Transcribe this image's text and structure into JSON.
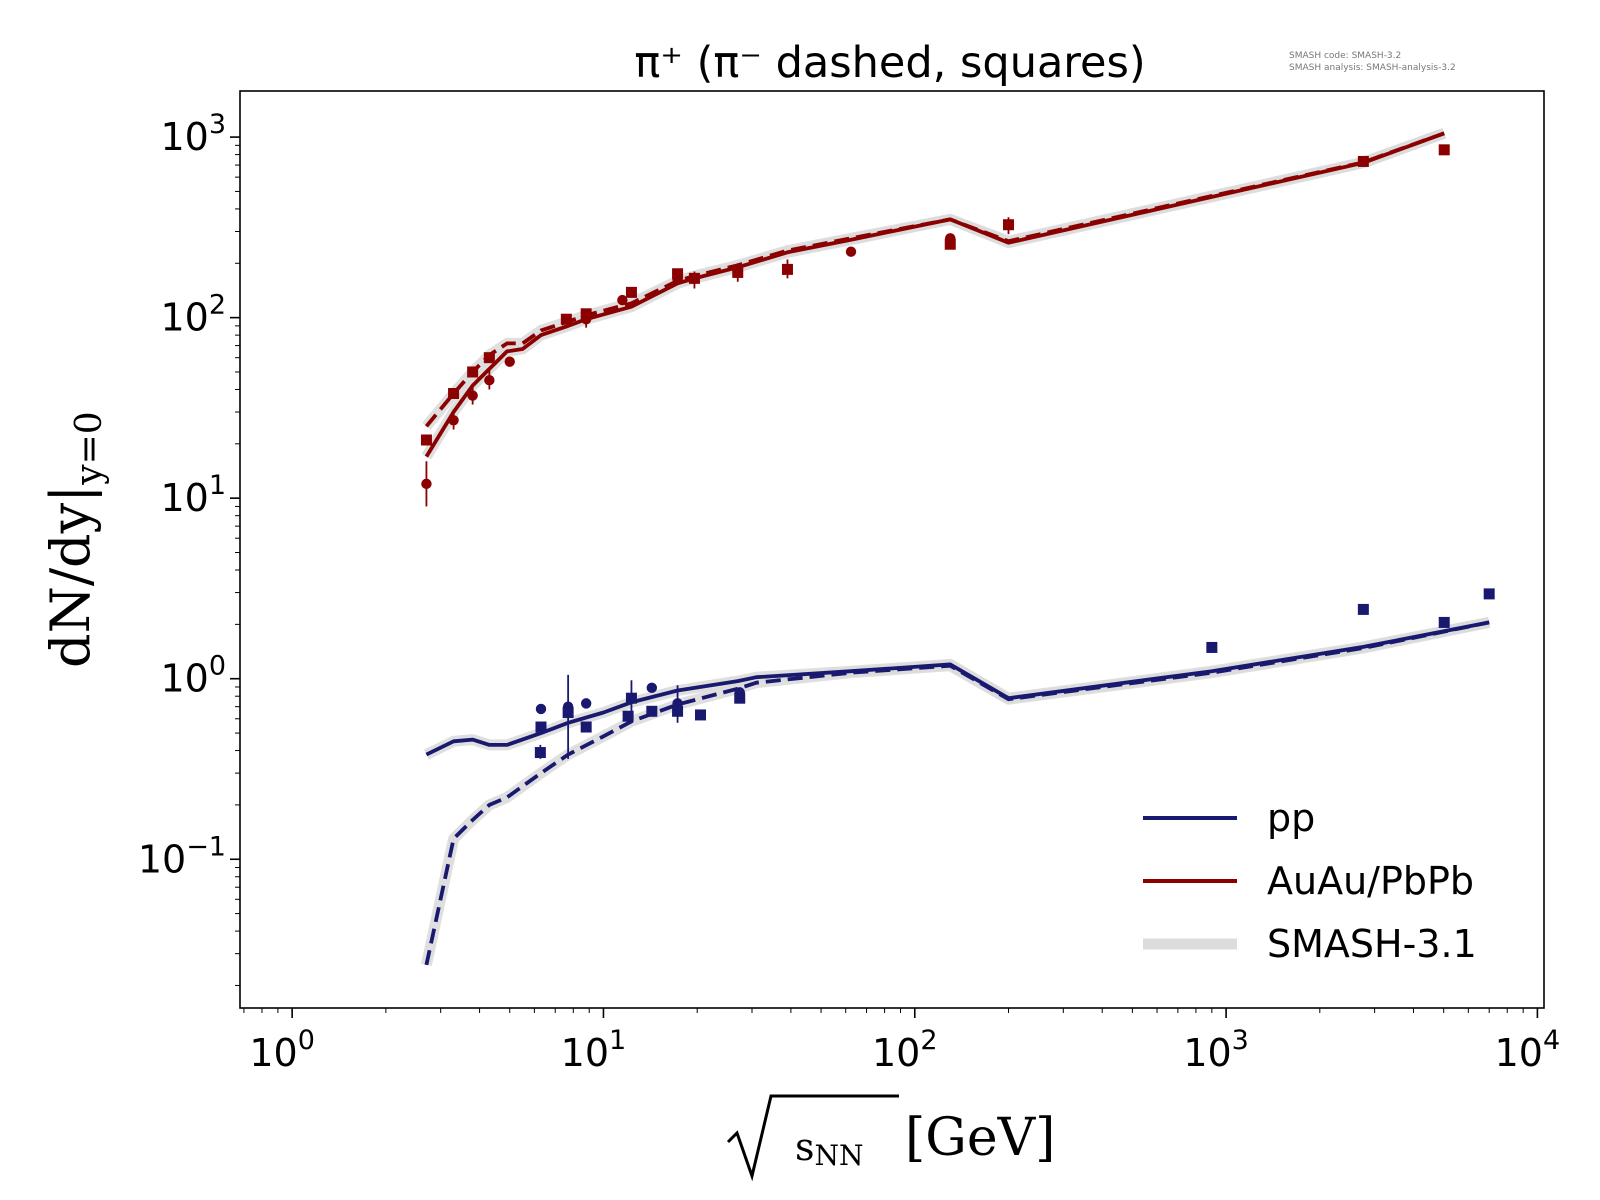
{
  "chart_data": {
    "type": "line",
    "title": "π⁺ (π⁻ dashed, squares)",
    "xlabel": "√sNN [GeV]",
    "ylabel": "dN/dy|y=0",
    "xscale": "log",
    "yscale": "log",
    "xlim": [
      0.68,
      10500
    ],
    "ylim": [
      0.015,
      1800
    ],
    "x_ticks": [
      {
        "value": 1,
        "base": "10",
        "exp": "0"
      },
      {
        "value": 10,
        "base": "10",
        "exp": "1"
      },
      {
        "value": 100,
        "base": "10",
        "exp": "2"
      },
      {
        "value": 1000,
        "base": "10",
        "exp": "3"
      },
      {
        "value": 10000,
        "base": "10",
        "exp": "4"
      }
    ],
    "y_ticks": [
      {
        "value": 0.1,
        "base": "10",
        "exp": "−1"
      },
      {
        "value": 1,
        "base": "10",
        "exp": "0"
      },
      {
        "value": 10,
        "base": "10",
        "exp": "1"
      },
      {
        "value": 100,
        "base": "10",
        "exp": "2"
      },
      {
        "value": 1000,
        "base": "10",
        "exp": "3"
      }
    ],
    "version_note": [
      "SMASH code:      SMASH-3.2",
      "SMASH analysis:  SMASH-analysis-3.2"
    ],
    "legend": {
      "placement": "lower-right",
      "entries": [
        {
          "label": "pp",
          "color": "#191970",
          "style": "line"
        },
        {
          "label": "AuAu/PbPb",
          "color": "#8b0000",
          "style": "line"
        },
        {
          "label": "SMASH-3.1",
          "color": "#dcdcdc",
          "style": "band"
        }
      ]
    },
    "series": [
      {
        "key": "auau_piplus",
        "color": "#8b0000",
        "dashed": false,
        "x": [
          2.7,
          3.3,
          3.8,
          4.3,
          4.9,
          5.5,
          6.3,
          7.7,
          8.8,
          12.3,
          17.3,
          19.6,
          27,
          39,
          62.4,
          130,
          200,
          2760,
          5020
        ],
        "y": [
          17,
          30,
          42,
          52,
          65,
          67,
          80,
          90,
          98,
          115,
          155,
          165,
          190,
          230,
          270,
          350,
          260,
          720,
          1050
        ]
      },
      {
        "key": "auau_piminus",
        "color": "#8b0000",
        "dashed": true,
        "x": [
          2.7,
          3.3,
          3.8,
          4.3,
          4.9,
          5.5,
          6.3,
          7.7,
          8.8,
          12.3,
          17.3,
          19.6,
          27,
          39,
          62.4,
          130,
          200,
          2760,
          5020
        ],
        "y": [
          25,
          38,
          50,
          62,
          72,
          72,
          85,
          95,
          103,
          120,
          160,
          170,
          195,
          235,
          275,
          350,
          265,
          725,
          1050
        ]
      },
      {
        "key": "pp_piplus",
        "color": "#191970",
        "dashed": false,
        "x": [
          2.7,
          3.3,
          3.8,
          4.3,
          4.9,
          6.3,
          7.7,
          10,
          12.3,
          17.3,
          27,
          31,
          62.4,
          130,
          200,
          900,
          2760,
          7000
        ],
        "y": [
          0.38,
          0.45,
          0.46,
          0.43,
          0.43,
          0.5,
          0.57,
          0.65,
          0.74,
          0.86,
          0.97,
          1.02,
          1.1,
          1.2,
          0.78,
          1.1,
          1.5,
          2.05
        ]
      },
      {
        "key": "pp_piminus",
        "color": "#191970",
        "dashed": true,
        "x": [
          2.7,
          3.3,
          3.8,
          4.3,
          4.9,
          6.3,
          7.7,
          10,
          12.3,
          17.3,
          27,
          31,
          62.4,
          130,
          200,
          900,
          2760,
          7000
        ],
        "y": [
          0.026,
          0.13,
          0.165,
          0.2,
          0.22,
          0.3,
          0.38,
          0.48,
          0.58,
          0.72,
          0.88,
          0.95,
          1.08,
          1.18,
          0.77,
          1.08,
          1.48,
          2.05
        ]
      }
    ],
    "measurements": [
      {
        "group": "auau",
        "marker": "circle",
        "x": 2.7,
        "y": 12,
        "err": [
          9,
          16
        ]
      },
      {
        "group": "auau",
        "marker": "square",
        "x": 2.7,
        "y": 21
      },
      {
        "group": "auau",
        "marker": "circle",
        "x": 3.3,
        "y": 27,
        "err": [
          24,
          31
        ]
      },
      {
        "group": "auau",
        "marker": "square",
        "x": 3.3,
        "y": 38
      },
      {
        "group": "auau",
        "marker": "circle",
        "x": 3.8,
        "y": 37,
        "err": [
          33,
          41
        ]
      },
      {
        "group": "auau",
        "marker": "square",
        "x": 3.8,
        "y": 50
      },
      {
        "group": "auau",
        "marker": "circle",
        "x": 4.3,
        "y": 45,
        "err": [
          40,
          51
        ]
      },
      {
        "group": "auau",
        "marker": "square",
        "x": 4.3,
        "y": 60
      },
      {
        "group": "auau",
        "marker": "circle",
        "x": 5.0,
        "y": 57
      },
      {
        "group": "auau",
        "marker": "square",
        "x": 7.6,
        "y": 98
      },
      {
        "group": "auau",
        "marker": "circle",
        "x": 8.8,
        "y": 98,
        "err": [
          88,
          108
        ]
      },
      {
        "group": "auau",
        "marker": "square",
        "x": 8.8,
        "y": 105
      },
      {
        "group": "auau",
        "marker": "circle",
        "x": 11.5,
        "y": 125
      },
      {
        "group": "auau",
        "marker": "square",
        "x": 12.3,
        "y": 138
      },
      {
        "group": "auau",
        "marker": "circle",
        "x": 17.3,
        "y": 163
      },
      {
        "group": "auau",
        "marker": "square",
        "x": 17.3,
        "y": 175
      },
      {
        "group": "auau",
        "marker": "square",
        "x": 19.6,
        "y": 165,
        "err": [
          145,
          180
        ]
      },
      {
        "group": "auau",
        "marker": "square",
        "x": 27,
        "y": 178,
        "err": [
          158,
          200
        ]
      },
      {
        "group": "auau",
        "marker": "square",
        "x": 39,
        "y": 185,
        "err": [
          165,
          210
        ]
      },
      {
        "group": "auau",
        "marker": "circle",
        "x": 62.4,
        "y": 232
      },
      {
        "group": "auau",
        "marker": "circle",
        "x": 130,
        "y": 275
      },
      {
        "group": "auau",
        "marker": "square",
        "x": 130,
        "y": 255
      },
      {
        "group": "auau",
        "marker": "square",
        "x": 200,
        "y": 327,
        "err": [
          290,
          360
        ]
      },
      {
        "group": "auau",
        "marker": "square",
        "x": 2760,
        "y": 733
      },
      {
        "group": "auau",
        "marker": "square",
        "x": 5020,
        "y": 850
      },
      {
        "group": "pp",
        "marker": "circle",
        "x": 6.3,
        "y": 0.68
      },
      {
        "group": "pp",
        "marker": "square",
        "x": 6.3,
        "y": 0.54
      },
      {
        "group": "pp",
        "marker": "square",
        "x": 6.27,
        "y": 0.39,
        "err": [
          0.36,
          0.43
        ]
      },
      {
        "group": "pp",
        "marker": "circle",
        "x": 7.7,
        "y": 0.7
      },
      {
        "group": "pp",
        "marker": "square",
        "x": 7.7,
        "y": 0.65,
        "err": [
          0.36,
          1.05
        ]
      },
      {
        "group": "pp",
        "marker": "circle",
        "x": 8.8,
        "y": 0.73
      },
      {
        "group": "pp",
        "marker": "square",
        "x": 8.8,
        "y": 0.54
      },
      {
        "group": "pp",
        "marker": "square",
        "x": 12.3,
        "y": 0.78,
        "err": [
          0.62,
          0.98
        ]
      },
      {
        "group": "pp",
        "marker": "square",
        "x": 12.0,
        "y": 0.62
      },
      {
        "group": "pp",
        "marker": "circle",
        "x": 14.3,
        "y": 0.89
      },
      {
        "group": "pp",
        "marker": "square",
        "x": 14.3,
        "y": 0.66
      },
      {
        "group": "pp",
        "marker": "circle",
        "x": 17.3,
        "y": 0.73
      },
      {
        "group": "pp",
        "marker": "square",
        "x": 17.3,
        "y": 0.66,
        "err": [
          0.57,
          0.92
        ]
      },
      {
        "group": "pp",
        "marker": "square",
        "x": 20.5,
        "y": 0.63
      },
      {
        "group": "pp",
        "marker": "circle",
        "x": 27.4,
        "y": 0.84
      },
      {
        "group": "pp",
        "marker": "square",
        "x": 27.4,
        "y": 0.78
      },
      {
        "group": "pp",
        "marker": "square",
        "x": 900,
        "y": 1.49
      },
      {
        "group": "pp",
        "marker": "square",
        "x": 2760,
        "y": 2.42
      },
      {
        "group": "pp",
        "marker": "square",
        "x": 5020,
        "y": 2.05
      },
      {
        "group": "pp",
        "marker": "square",
        "x": 7000,
        "y": 2.95
      }
    ]
  }
}
